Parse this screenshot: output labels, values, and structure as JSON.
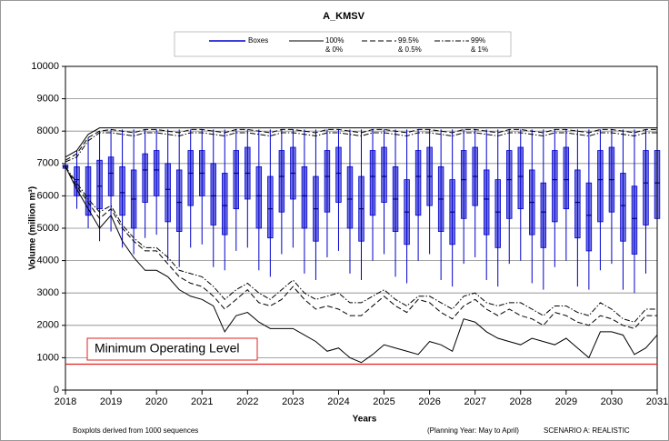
{
  "chart_data": {
    "type": "boxplot",
    "title": "A_KMSV",
    "xlabel": "Years",
    "ylabel": "Volume (million m³)",
    "xlim": [
      2018,
      2031
    ],
    "ylim": [
      0,
      10000
    ],
    "xticks": [
      2018,
      2019,
      2020,
      2021,
      2022,
      2023,
      2024,
      2025,
      2026,
      2027,
      2028,
      2029,
      2030,
      2031
    ],
    "yticks": [
      0,
      1000,
      2000,
      3000,
      4000,
      5000,
      6000,
      7000,
      8000,
      9000,
      10000
    ],
    "grid": true,
    "x": [
      2018,
      2018.25,
      2018.5,
      2018.75,
      2019,
      2019.25,
      2019.5,
      2019.75,
      2020,
      2020.25,
      2020.5,
      2020.75,
      2021,
      2021.25,
      2021.5,
      2021.75,
      2022,
      2022.25,
      2022.5,
      2022.75,
      2023,
      2023.25,
      2023.5,
      2023.75,
      2024,
      2024.25,
      2024.5,
      2024.75,
      2025,
      2025.25,
      2025.5,
      2025.75,
      2026,
      2026.25,
      2026.5,
      2026.75,
      2027,
      2027.25,
      2027.5,
      2027.75,
      2028,
      2028.25,
      2028.5,
      2028.75,
      2029,
      2029.25,
      2029.5,
      2029.75,
      2030,
      2030.25,
      2030.5,
      2030.75,
      2031
    ],
    "boxes": {
      "name": "Boxes",
      "color": "#0000cc",
      "low": [
        6800,
        5600,
        5000,
        4600,
        4900,
        4400,
        4200,
        4700,
        4800,
        4000,
        3800,
        4400,
        4500,
        3800,
        3700,
        4300,
        4400,
        3700,
        3500,
        4200,
        4400,
        3600,
        3400,
        4100,
        4300,
        3600,
        3400,
        4000,
        4200,
        3500,
        3300,
        4000,
        4200,
        3400,
        3200,
        3900,
        4100,
        3400,
        3200,
        3900,
        4000,
        3300,
        3100,
        3800,
        4000,
        3200,
        3100,
        3700,
        3900,
        3100,
        3000,
        3600,
        3600
      ],
      "q1": [
        6850,
        6000,
        5400,
        5600,
        6000,
        5400,
        5000,
        5800,
        6000,
        5200,
        4900,
        5700,
        6000,
        5100,
        4800,
        5600,
        5900,
        5000,
        4700,
        5500,
        5900,
        5000,
        4600,
        5500,
        5800,
        5000,
        4600,
        5400,
        5800,
        4900,
        4500,
        5400,
        5700,
        4900,
        4500,
        5300,
        5700,
        4800,
        4400,
        5300,
        5600,
        4800,
        4400,
        5200,
        5600,
        4700,
        4300,
        5200,
        5500,
        4600,
        4200,
        5100,
        5300
      ],
      "median": [
        6900,
        6500,
        6000,
        6300,
        6700,
        6100,
        5900,
        6800,
        6800,
        6200,
        5800,
        6700,
        6700,
        6000,
        5700,
        6700,
        6700,
        6000,
        5600,
        6600,
        6700,
        6000,
        5600,
        6600,
        6700,
        5900,
        5600,
        6600,
        6600,
        5900,
        5500,
        6600,
        6600,
        5900,
        5500,
        6500,
        6600,
        5900,
        5500,
        6500,
        6600,
        5800,
        5500,
        6500,
        6500,
        5800,
        5400,
        6500,
        6500,
        5700,
        5300,
        6400,
        6400
      ],
      "q3": [
        6950,
        6900,
        6900,
        7100,
        7200,
        6900,
        6800,
        7300,
        7400,
        7000,
        6800,
        7400,
        7400,
        7000,
        6700,
        7400,
        7500,
        6900,
        6600,
        7400,
        7500,
        6900,
        6600,
        7400,
        7500,
        6900,
        6600,
        7400,
        7500,
        6900,
        6500,
        7400,
        7500,
        6900,
        6500,
        7400,
        7500,
        6800,
        6500,
        7400,
        7500,
        6800,
        6400,
        7400,
        7500,
        6800,
        6400,
        7400,
        7500,
        6700,
        6300,
        7400,
        7400
      ],
      "high": [
        7000,
        7400,
        7800,
        8000,
        8050,
        8050,
        8050,
        8050,
        8050,
        8050,
        8050,
        8050,
        8050,
        8050,
        8050,
        8050,
        8050,
        8050,
        8050,
        8050,
        8050,
        8050,
        8050,
        8050,
        8050,
        8050,
        8050,
        8050,
        8050,
        8050,
        8050,
        8050,
        8050,
        8050,
        8050,
        8050,
        8050,
        8050,
        8050,
        8050,
        8050,
        8050,
        8050,
        8050,
        8050,
        8050,
        8050,
        8050,
        8050,
        8050,
        8050,
        8050,
        8050
      ]
    },
    "series": [
      {
        "name": "100%",
        "name2": "& 0%",
        "color": "#000000",
        "dash": "solid",
        "upper": [
          7200,
          7400,
          7900,
          8100,
          8100,
          8100,
          8100,
          8100,
          8100,
          8100,
          8100,
          8100,
          8100,
          8100,
          8100,
          8100,
          8100,
          8100,
          8100,
          8100,
          8100,
          8100,
          8100,
          8100,
          8100,
          8100,
          8100,
          8100,
          8100,
          8100,
          8100,
          8100,
          8100,
          8100,
          8100,
          8100,
          8100,
          8100,
          8100,
          8100,
          8100,
          8100,
          8100,
          8100,
          8100,
          8100,
          8100,
          8100,
          8100,
          8100,
          8100,
          8100,
          8100
        ],
        "lower": [
          6900,
          6200,
          5600,
          5000,
          5400,
          4600,
          4100,
          3700,
          3700,
          3500,
          3100,
          2900,
          2800,
          2600,
          1800,
          2300,
          2400,
          2100,
          1900,
          1900,
          1900,
          1700,
          1500,
          1200,
          1300,
          1000,
          850,
          1100,
          1400,
          1300,
          1200,
          1100,
          1500,
          1400,
          1200,
          2200,
          2100,
          1800,
          1600,
          1500,
          1400,
          1600,
          1500,
          1400,
          1600,
          1300,
          1000,
          1800,
          1800,
          1700,
          1100,
          1300,
          1700
        ]
      },
      {
        "name": "99.5%",
        "name2": "& 0.5%",
        "color": "#000000",
        "dash": "dashed",
        "upper": [
          7100,
          7300,
          7800,
          8000,
          8050,
          8000,
          7950,
          8050,
          8050,
          8000,
          7950,
          8050,
          8050,
          8000,
          7950,
          8050,
          8050,
          8000,
          7950,
          8050,
          8050,
          8000,
          7950,
          8050,
          8050,
          8000,
          7950,
          8050,
          8050,
          8000,
          7950,
          8050,
          8050,
          8000,
          7950,
          8050,
          8050,
          8000,
          7950,
          8050,
          8050,
          8000,
          7950,
          8050,
          8050,
          8000,
          7950,
          8050,
          8050,
          8000,
          7950,
          8050,
          8050
        ],
        "lower": [
          6900,
          6300,
          5800,
          5300,
          5600,
          5000,
          4600,
          4300,
          4300,
          3900,
          3500,
          3300,
          3200,
          2900,
          2500,
          2800,
          3100,
          2700,
          2600,
          2800,
          3200,
          2800,
          2500,
          2600,
          2500,
          2300,
          2300,
          2600,
          2900,
          2600,
          2400,
          2800,
          2700,
          2400,
          2200,
          2600,
          2800,
          2500,
          2300,
          2500,
          2300,
          2200,
          2000,
          2400,
          2300,
          2100,
          2000,
          2300,
          2200,
          2000,
          1900,
          2300,
          2300
        ]
      },
      {
        "name": "99%",
        "name2": "& 1%",
        "color": "#000000",
        "dash": "dashdot",
        "upper": [
          7050,
          7200,
          7700,
          7950,
          7950,
          7900,
          7850,
          7950,
          7950,
          7900,
          7850,
          7950,
          7950,
          7900,
          7850,
          7950,
          7950,
          7900,
          7850,
          7950,
          7950,
          7900,
          7850,
          7950,
          7950,
          7900,
          7850,
          7950,
          7950,
          7900,
          7850,
          7950,
          7950,
          7900,
          7850,
          7950,
          7950,
          7900,
          7850,
          7950,
          7950,
          7900,
          7850,
          7950,
          7950,
          7900,
          7850,
          7950,
          7950,
          7900,
          7850,
          7950,
          7950
        ],
        "lower": [
          6900,
          6400,
          5900,
          5500,
          5700,
          5100,
          4700,
          4400,
          4400,
          4100,
          3700,
          3600,
          3500,
          3200,
          2800,
          3100,
          3300,
          3000,
          2800,
          3100,
          3400,
          3000,
          2800,
          2900,
          3000,
          2700,
          2700,
          2900,
          3100,
          2800,
          2600,
          2900,
          2900,
          2700,
          2500,
          2900,
          3000,
          2700,
          2600,
          2700,
          2700,
          2500,
          2300,
          2600,
          2600,
          2400,
          2300,
          2700,
          2500,
          2200,
          2100,
          2500,
          2500
        ]
      }
    ],
    "annotation": {
      "text": "Minimum Operating Level",
      "value": 800,
      "color": "#e02020"
    },
    "footnotes": [
      "Boxplots derived from 1000 sequences",
      "(Planning Year: May to April)",
      "SCENARIO A: REALISTIC"
    ]
  }
}
